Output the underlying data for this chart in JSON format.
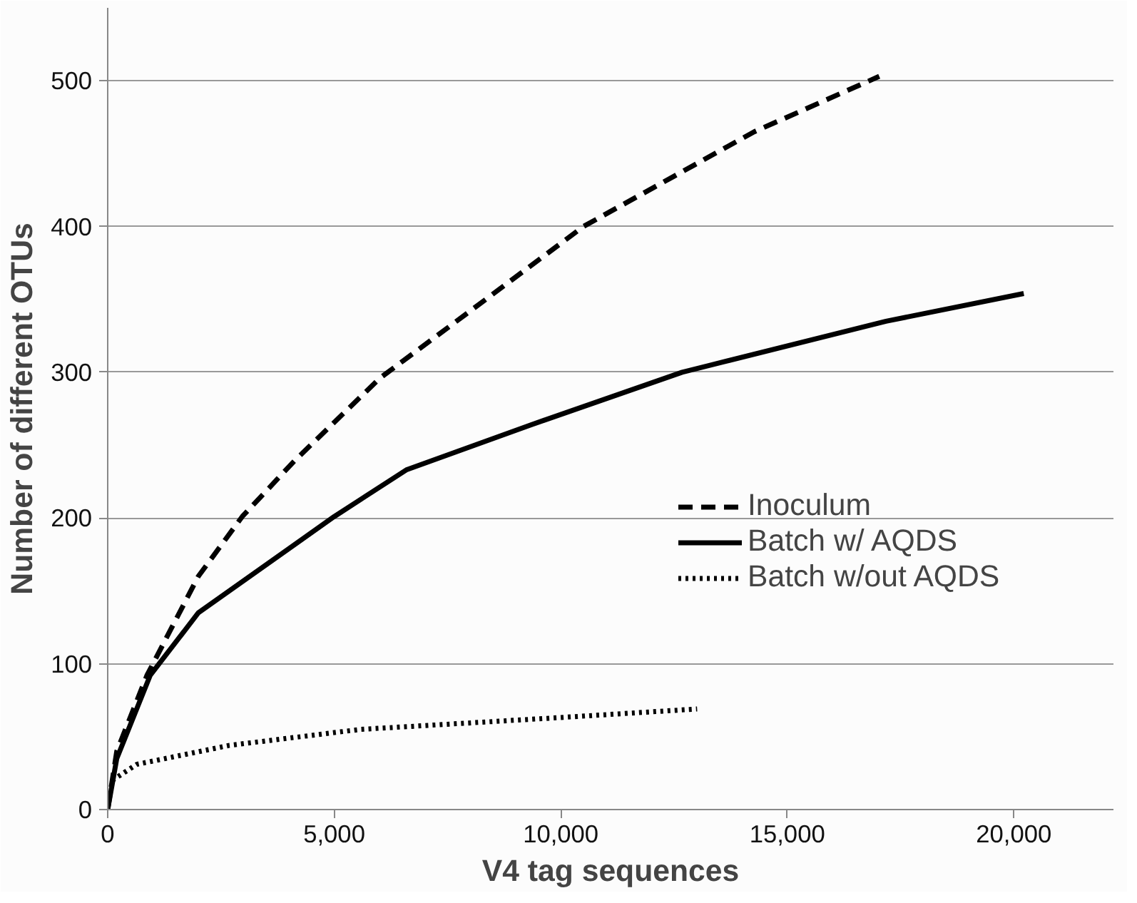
{
  "chart_data": {
    "type": "line",
    "xlabel": "V4 tag sequences",
    "ylabel": "Number of different OTUs",
    "xlim": [
      0,
      22200
    ],
    "ylim": [
      0,
      550
    ],
    "xticks": [
      0,
      {
        "value": 5000,
        "label": "5,000"
      },
      {
        "value": 10000,
        "label": "10,000"
      },
      {
        "value": 15000,
        "label": "15,000"
      },
      {
        "value": 20000,
        "label": "20,000"
      }
    ],
    "yticks": [
      0,
      100,
      200,
      300,
      400,
      500
    ],
    "grid": "y",
    "legend": "right",
    "marker": "none",
    "series": [
      {
        "name": "Inoculum",
        "color": "#000000",
        "line_style": "dashed",
        "x": [
          0,
          200,
          865,
          2000,
          2970,
          4115,
          6010,
          8000,
          10500,
          14270,
          17030
        ],
        "values": [
          0,
          40,
          92,
          160,
          201,
          239,
          296,
          342,
          400,
          465,
          503
        ]
      },
      {
        "name": "Batch w/ AQDS",
        "color": "#000000",
        "line_style": "solid",
        "x": [
          0,
          200,
          937,
          2000,
          5000,
          6590,
          9350,
          12680,
          17180,
          20220
        ],
        "values": [
          0,
          35,
          92,
          135,
          201,
          233,
          264,
          300,
          335,
          354
        ]
      },
      {
        "name": "Batch w/out AQDS",
        "color": "#000000",
        "line_style": "dotted",
        "x": [
          100,
          640,
          2680,
          5580,
          9920,
          13010
        ],
        "values": [
          20,
          31,
          44,
          55,
          63,
          69
        ]
      }
    ]
  }
}
